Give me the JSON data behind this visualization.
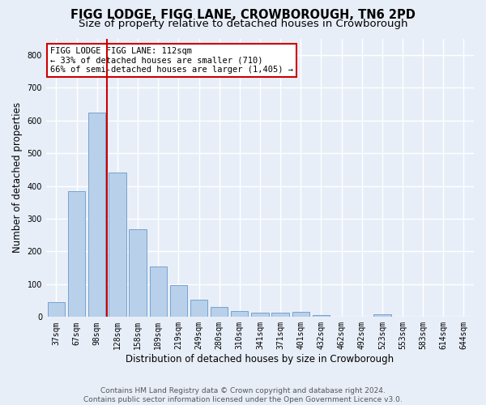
{
  "title": "FIGG LODGE, FIGG LANE, CROWBOROUGH, TN6 2PD",
  "subtitle": "Size of property relative to detached houses in Crowborough",
  "xlabel": "Distribution of detached houses by size in Crowborough",
  "ylabel": "Number of detached properties",
  "categories": [
    "37sqm",
    "67sqm",
    "98sqm",
    "128sqm",
    "158sqm",
    "189sqm",
    "219sqm",
    "249sqm",
    "280sqm",
    "310sqm",
    "341sqm",
    "371sqm",
    "401sqm",
    "432sqm",
    "462sqm",
    "492sqm",
    "523sqm",
    "553sqm",
    "583sqm",
    "614sqm",
    "644sqm"
  ],
  "values": [
    45,
    383,
    625,
    440,
    268,
    155,
    97,
    52,
    30,
    18,
    12,
    12,
    15,
    7,
    0,
    0,
    8,
    0,
    0,
    0,
    0
  ],
  "bar_color": "#b8d0ea",
  "bar_edge_color": "#6699cc",
  "vline_color": "#cc0000",
  "annotation_text": "FIGG LODGE FIGG LANE: 112sqm\n← 33% of detached houses are smaller (710)\n66% of semi-detached houses are larger (1,405) →",
  "annotation_box_color": "#ffffff",
  "annotation_box_edge_color": "#cc0000",
  "ylim": [
    0,
    850
  ],
  "yticks": [
    0,
    100,
    200,
    300,
    400,
    500,
    600,
    700,
    800
  ],
  "footer": "Contains HM Land Registry data © Crown copyright and database right 2024.\nContains public sector information licensed under the Open Government Licence v3.0.",
  "bg_color": "#e8eef8",
  "plot_bg_color": "#e8eef8",
  "grid_color": "#ffffff",
  "title_fontsize": 10.5,
  "subtitle_fontsize": 9.5,
  "axis_label_fontsize": 8.5,
  "tick_fontsize": 7,
  "footer_fontsize": 6.5,
  "annotation_fontsize": 7.5
}
